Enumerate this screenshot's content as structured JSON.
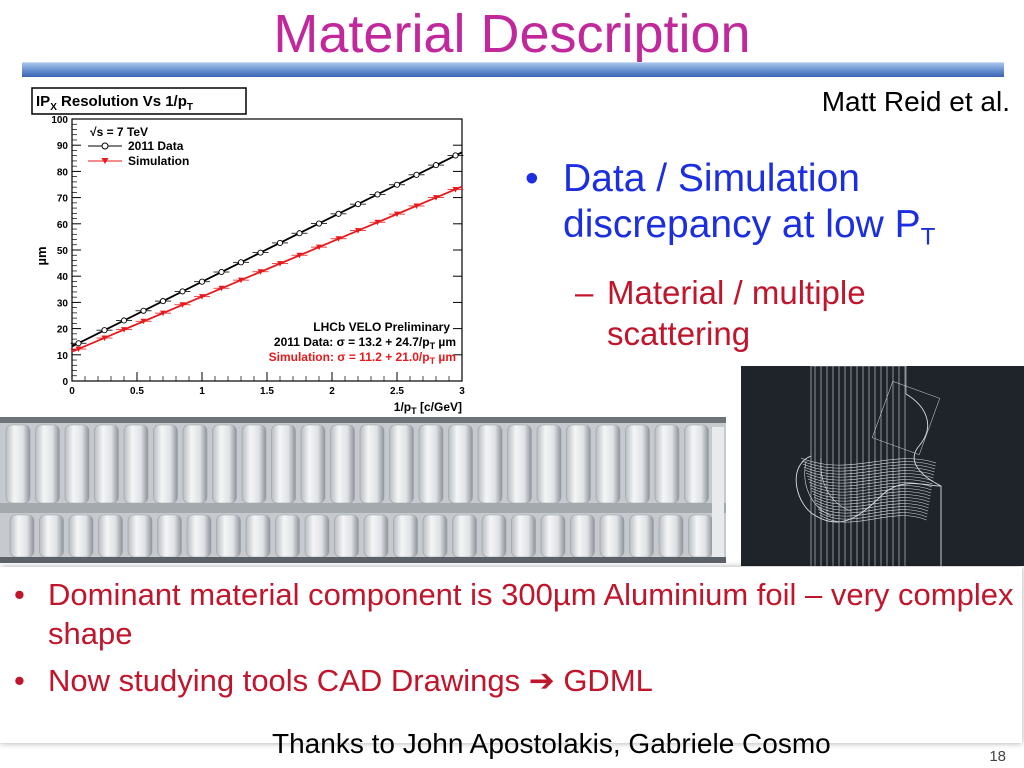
{
  "slide": {
    "title": "Material Description",
    "author": "Matt Reid et al.",
    "page_number": "18",
    "thanks": "Thanks to John Apostolakis, Gabriele Cosmo"
  },
  "top_bullets": {
    "main": "Data / Simulation discrepancy at low P",
    "main_sub": "T",
    "sub": "Material / multiple scattering"
  },
  "bottom_bullets": [
    {
      "text": "Dominant material component is 300µm Aluminium foil – very complex shape"
    },
    {
      "text": "Now studying tools CAD Drawings",
      "arrow": "➔",
      "text_after": "GDML"
    }
  ],
  "images": {
    "foil": "aluminium-foil-image",
    "cad": "cad-wireframe-image"
  },
  "chart_data": {
    "type": "line",
    "title": "IP",
    "title_sub": "X",
    "title_mid": " Resolution Vs 1/p",
    "title_sub2": "T",
    "xlabel": "1/p",
    "xlabel_sub": "T",
    "xlabel_unit": " [c/GeV]",
    "ylabel": "µm",
    "xlim": [
      0,
      3
    ],
    "ylim": [
      0,
      100
    ],
    "xticks": [
      "0",
      "0.5",
      "1",
      "1.5",
      "2",
      "2.5",
      "3"
    ],
    "yticks": [
      "0",
      "10",
      "20",
      "30",
      "40",
      "50",
      "60",
      "70",
      "80",
      "90",
      "100"
    ],
    "legend": {
      "energy": "√s = 7 TeV",
      "data": "2011 Data",
      "sim": "Simulation",
      "placement": "top-left"
    },
    "annotation": {
      "prelim": "LHCb VELO Preliminary",
      "data_fit": "2011 Data: σ = 13.2 + 24.7/p",
      "data_fit_tail": " µm",
      "sim_fit": "Simulation: σ = 11.2 + 21.0/p",
      "sim_fit_tail": " µm",
      "sub": "T"
    },
    "series": [
      {
        "name": "2011 Data",
        "color": "#000000",
        "marker": "circle",
        "x": [
          0.05,
          0.25,
          0.4,
          0.55,
          0.7,
          0.85,
          1.0,
          1.15,
          1.3,
          1.45,
          1.6,
          1.75,
          1.9,
          2.05,
          2.2,
          2.35,
          2.5,
          2.65,
          2.8,
          2.95
        ],
        "y": [
          14.4,
          19.4,
          23.1,
          26.8,
          30.5,
          34.2,
          37.9,
          41.6,
          45.3,
          49.0,
          52.7,
          56.4,
          60.1,
          63.8,
          67.5,
          71.2,
          74.9,
          78.7,
          82.4,
          86.1
        ]
      },
      {
        "name": "Simulation",
        "color": "#e8191c",
        "marker": "triangle-down",
        "x": [
          0.05,
          0.25,
          0.4,
          0.55,
          0.7,
          0.85,
          1.0,
          1.15,
          1.3,
          1.45,
          1.6,
          1.75,
          1.9,
          2.05,
          2.2,
          2.35,
          2.5,
          2.65,
          2.8,
          2.95
        ],
        "y": [
          12.2,
          16.4,
          19.6,
          22.8,
          25.9,
          29.1,
          32.2,
          35.4,
          38.5,
          41.7,
          44.8,
          48.0,
          51.1,
          54.3,
          57.4,
          60.6,
          63.7,
          66.8,
          70.0,
          73.1
        ]
      }
    ],
    "fits": [
      {
        "name": "2011 Data",
        "intercept": 13.2,
        "slope": 24.7
      },
      {
        "name": "Simulation",
        "intercept": 11.2,
        "slope": 21.0
      }
    ]
  }
}
